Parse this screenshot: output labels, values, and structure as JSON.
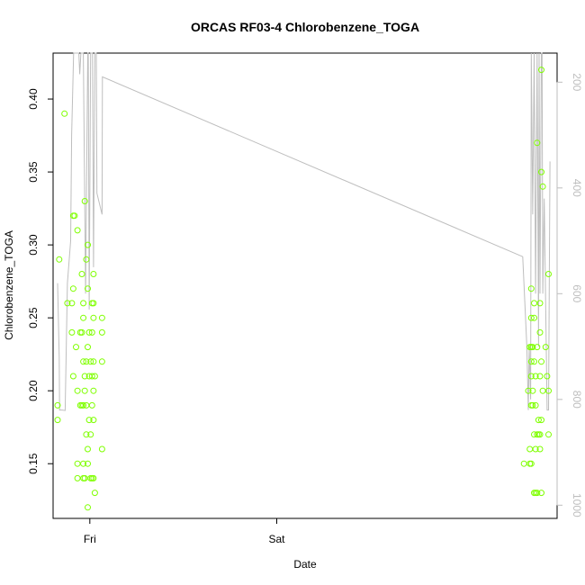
{
  "chart_data": {
    "type": "scatter",
    "title": "ORCAS RF03-4 Chlorobenzene_TOGA",
    "xlabel": "Date",
    "ylabel": "Chlorobenzene_TOGA",
    "x_ticks": [
      "Fri",
      "Sat"
    ],
    "y_ticks": [
      "0.15",
      "0.20",
      "0.25",
      "0.30",
      "0.35",
      "0.40"
    ],
    "y2_ticks": [
      "200",
      "400",
      "600",
      "800",
      "1000"
    ],
    "xlim": [
      "Thu 19:17",
      "Sun 12:00"
    ],
    "ylim": [
      0.1125,
      0.4315
    ],
    "y2lim": [
      1025,
      145
    ],
    "y2_reversed": true,
    "grid": false,
    "colors": {
      "points": "#7fff00",
      "line": "#bebebe",
      "axes": "#000000",
      "right_axis": "#bebebe"
    },
    "series": [
      {
        "type": "points",
        "axis": "left",
        "points": [
          [
            "Thu 19:52",
            0.19
          ],
          [
            "Thu 19:52",
            0.18
          ],
          [
            "Thu 20:04",
            0.29
          ],
          [
            "Thu 20:45",
            0.39
          ],
          [
            "Thu 21:07",
            0.26
          ],
          [
            "Thu 21:42",
            0.26
          ],
          [
            "Thu 21:42",
            0.24
          ],
          [
            "Thu 21:52",
            0.32
          ],
          [
            "Thu 21:52",
            0.21
          ],
          [
            "Thu 21:52",
            0.27
          ],
          [
            "Thu 22:03",
            0.32
          ],
          [
            "Thu 22:14",
            0.23
          ],
          [
            "Thu 22:25",
            0.31
          ],
          [
            "Thu 22:25",
            0.2
          ],
          [
            "Thu 22:25",
            0.15
          ],
          [
            "Thu 22:25",
            0.14
          ],
          [
            "Thu 22:59",
            0.28
          ],
          [
            "Thu 22:59",
            0.24
          ],
          [
            "Thu 22:59",
            0.19
          ],
          [
            "Thu 22:47",
            0.24
          ],
          [
            "Thu 22:47",
            0.19
          ],
          [
            "Thu 23:10",
            0.26
          ],
          [
            "Thu 23:10",
            0.25
          ],
          [
            "Thu 23:10",
            0.22
          ],
          [
            "Thu 23:10",
            0.19
          ],
          [
            "Thu 23:10",
            0.15
          ],
          [
            "Thu 23:10",
            0.14
          ],
          [
            "Thu 23:21",
            0.33
          ],
          [
            "Thu 23:21",
            0.21
          ],
          [
            "Thu 23:21",
            0.2
          ],
          [
            "Thu 23:21",
            0.14
          ],
          [
            "Thu 23:33",
            0.29
          ],
          [
            "Thu 23:33",
            0.22
          ],
          [
            "Thu 23:33",
            0.17
          ],
          [
            "Thu 23:33",
            0.19
          ],
          [
            "Thu 23:44",
            0.3
          ],
          [
            "Thu 23:44",
            0.27
          ],
          [
            "Thu 23:44",
            0.23
          ],
          [
            "Thu 23:44",
            0.16
          ],
          [
            "Thu 23:44",
            0.15
          ],
          [
            "Thu 23:44",
            0.12
          ],
          [
            "Thu 23:55",
            0.24
          ],
          [
            "Thu 23:55",
            0.21
          ],
          [
            "Thu 23:55",
            0.18
          ],
          [
            "Fri 00:06",
            0.22
          ],
          [
            "Fri 00:06",
            0.17
          ],
          [
            "Fri 00:06",
            0.14
          ],
          [
            "Fri 00:17",
            0.26
          ],
          [
            "Fri 00:17",
            0.24
          ],
          [
            "Fri 00:17",
            0.21
          ],
          [
            "Fri 00:17",
            0.19
          ],
          [
            "Fri 00:17",
            0.14
          ],
          [
            "Fri 00:28",
            0.28
          ],
          [
            "Fri 00:28",
            0.26
          ],
          [
            "Fri 00:28",
            0.25
          ],
          [
            "Fri 00:28",
            0.22
          ],
          [
            "Fri 00:28",
            0.2
          ],
          [
            "Fri 00:28",
            0.18
          ],
          [
            "Fri 00:28",
            0.14
          ],
          [
            "Fri 00:39",
            0.21
          ],
          [
            "Fri 00:39",
            0.13
          ],
          [
            "Fri 01:34",
            0.25
          ],
          [
            "Fri 01:34",
            0.24
          ],
          [
            "Fri 01:34",
            0.22
          ],
          [
            "Fri 01:34",
            0.16
          ],
          [
            "Sun 07:45",
            0.15
          ],
          [
            "Sun 08:18",
            0.2
          ],
          [
            "Sun 08:30",
            0.16
          ],
          [
            "Sun 08:30",
            0.15
          ],
          [
            "Sun 08:30",
            0.23
          ],
          [
            "Sun 08:41",
            0.27
          ],
          [
            "Sun 08:41",
            0.25
          ],
          [
            "Sun 08:41",
            0.23
          ],
          [
            "Sun 08:41",
            0.22
          ],
          [
            "Sun 08:41",
            0.21
          ],
          [
            "Sun 08:41",
            0.19
          ],
          [
            "Sun 08:41",
            0.15
          ],
          [
            "Sun 08:52",
            0.23
          ],
          [
            "Sun 08:52",
            0.2
          ],
          [
            "Sun 08:52",
            0.19
          ],
          [
            "Sun 09:03",
            0.26
          ],
          [
            "Sun 09:03",
            0.25
          ],
          [
            "Sun 09:03",
            0.22
          ],
          [
            "Sun 09:03",
            0.17
          ],
          [
            "Sun 09:03",
            0.13
          ],
          [
            "Sun 09:14",
            0.21
          ],
          [
            "Sun 09:14",
            0.19
          ],
          [
            "Sun 09:14",
            0.16
          ],
          [
            "Sun 09:14",
            0.13
          ],
          [
            "Sun 09:26",
            0.37
          ],
          [
            "Sun 09:26",
            0.23
          ],
          [
            "Sun 09:26",
            0.17
          ],
          [
            "Sun 09:26",
            0.13
          ],
          [
            "Sun 09:37",
            0.18
          ],
          [
            "Sun 09:37",
            0.17
          ],
          [
            "Sun 09:48",
            0.26
          ],
          [
            "Sun 09:48",
            0.24
          ],
          [
            "Sun 09:48",
            0.21
          ],
          [
            "Sun 09:48",
            0.17
          ],
          [
            "Sun 09:48",
            0.16
          ],
          [
            "Sun 09:59",
            0.42
          ],
          [
            "Sun 09:59",
            0.35
          ],
          [
            "Sun 09:59",
            0.22
          ],
          [
            "Sun 09:59",
            0.18
          ],
          [
            "Sun 09:59",
            0.13
          ],
          [
            "Sun 10:10",
            0.34
          ],
          [
            "Sun 10:10",
            0.2
          ],
          [
            "Sun 10:32",
            0.23
          ],
          [
            "Sun 10:43",
            0.21
          ],
          [
            "Sun 10:54",
            0.28
          ],
          [
            "Sun 10:54",
            0.2
          ],
          [
            "Sun 10:54",
            0.17
          ]
        ]
      },
      {
        "type": "line",
        "axis": "right",
        "points": [
          [
            "Thu 19:52",
            580
          ],
          [
            "Thu 20:04",
            720
          ],
          [
            "Thu 20:07",
            820
          ],
          [
            "Thu 20:27",
            820
          ],
          [
            "Thu 20:50",
            821
          ],
          [
            "Thu 21:07",
            580
          ],
          [
            "Thu 21:32",
            500
          ],
          [
            "Thu 21:40",
            300
          ],
          [
            "Thu 21:55",
            145
          ],
          [
            "Thu 22:14",
            145
          ],
          [
            "Thu 22:35",
            145
          ],
          [
            "Thu 22:42",
            185
          ],
          [
            "Thu 22:51",
            145
          ],
          [
            "Thu 23:10",
            145
          ],
          [
            "Thu 23:27",
            600
          ],
          [
            "Thu 23:44",
            145
          ],
          [
            "Thu 23:48",
            145
          ],
          [
            "Thu 23:55",
            630
          ],
          [
            "Fri 00:06",
            145
          ],
          [
            "Fri 00:14",
            145
          ],
          [
            "Fri 00:21",
            145
          ],
          [
            "Fri 00:28",
            550
          ],
          [
            "Fri 00:39",
            145
          ],
          [
            "Fri 00:50",
            145
          ],
          [
            "Fri 00:55",
            410
          ],
          [
            "Fri 01:34",
            450
          ],
          [
            "Fri 01:37",
            190
          ],
          [
            "Sun 07:35",
            530
          ],
          [
            "Sun 08:07",
            700
          ],
          [
            "Sun 08:18",
            820
          ],
          [
            "Sun 08:25",
            700
          ],
          [
            "Sun 08:36",
            800
          ],
          [
            "Sun 08:41",
            145
          ],
          [
            "Sun 08:52",
            450
          ],
          [
            "Sun 09:03",
            145
          ],
          [
            "Sun 09:14",
            600
          ],
          [
            "Sun 09:26",
            145
          ],
          [
            "Sun 09:37",
            700
          ],
          [
            "Sun 09:41",
            145
          ],
          [
            "Sun 09:48",
            600
          ],
          [
            "Sun 09:59",
            145
          ],
          [
            "Sun 10:04",
            145
          ],
          [
            "Sun 10:10",
            600
          ],
          [
            "Sun 10:21",
            420
          ],
          [
            "Sun 10:43",
            820
          ],
          [
            "Sun 10:54",
            820
          ],
          [
            "Sun 11:05",
            350
          ]
        ]
      }
    ]
  }
}
